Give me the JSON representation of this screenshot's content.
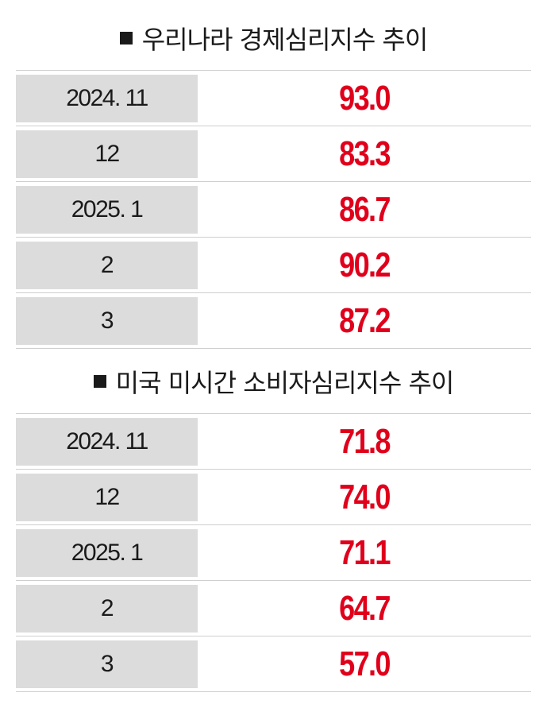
{
  "accent_color": "#e0001b",
  "sections": [
    {
      "title": "우리나라 경제심리지수 추이",
      "rows": [
        {
          "period": "2024. 11",
          "value": "93.0"
        },
        {
          "period": "12",
          "value": "83.3"
        },
        {
          "period": "2025. 1",
          "value": "86.7"
        },
        {
          "period": "2",
          "value": "90.2"
        },
        {
          "period": "3",
          "value": "87.2"
        }
      ]
    },
    {
      "title": "미국 미시간 소비자심리지수 추이",
      "rows": [
        {
          "period": "2024. 11",
          "value": "71.8"
        },
        {
          "period": "12",
          "value": "74.0"
        },
        {
          "period": "2025. 1",
          "value": "71.1"
        },
        {
          "period": "2",
          "value": "64.7"
        },
        {
          "period": "3",
          "value": "57.0"
        }
      ]
    }
  ]
}
